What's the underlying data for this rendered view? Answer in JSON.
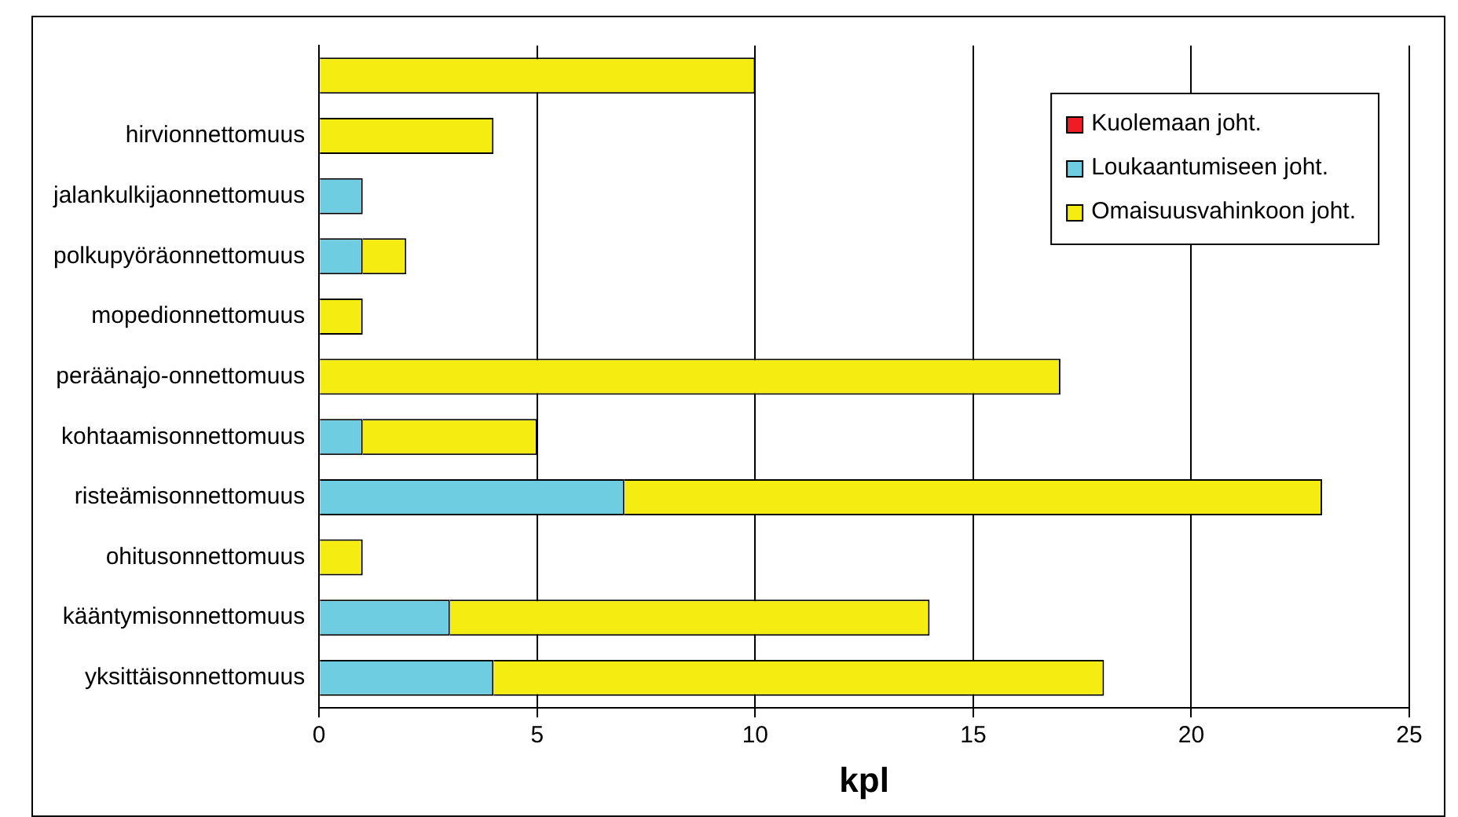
{
  "chart_data": {
    "type": "bar",
    "orientation": "horizontal",
    "stacked": true,
    "xlabel": "kpl",
    "categories": [
      null,
      "hirvionnettomuus",
      "jalankulkijaonnettomuus",
      "polkupyöräonnettomuus",
      "mopedionnettomuus",
      "peräänajo-onnettomuus",
      "kohtaamisonnettomuus",
      "risteämisonnettomuus",
      "ohitusonnettomuus",
      "kääntymisonnettomuus",
      "yksittäisonnettomuus"
    ],
    "series": [
      {
        "name": "Kuolemaan joht.",
        "color": "#ee1c24",
        "values": [
          0,
          0,
          0,
          0,
          0,
          0,
          0,
          0,
          0,
          0,
          0
        ]
      },
      {
        "name": "Loukaantumiseen joht.",
        "color": "#6ecde0",
        "values": [
          0,
          0,
          1,
          1,
          0,
          0,
          1,
          7,
          0,
          3,
          4
        ]
      },
      {
        "name": "Omaisuusvahinkoon joht.",
        "color": "#f5ec12",
        "values": [
          10,
          4,
          0,
          1,
          1,
          17,
          4,
          16,
          1,
          11,
          14
        ]
      }
    ],
    "xlim": [
      0,
      25
    ],
    "xticks": [
      0,
      5,
      10,
      15,
      20,
      25
    ],
    "grid": "x",
    "legend": "top right"
  }
}
